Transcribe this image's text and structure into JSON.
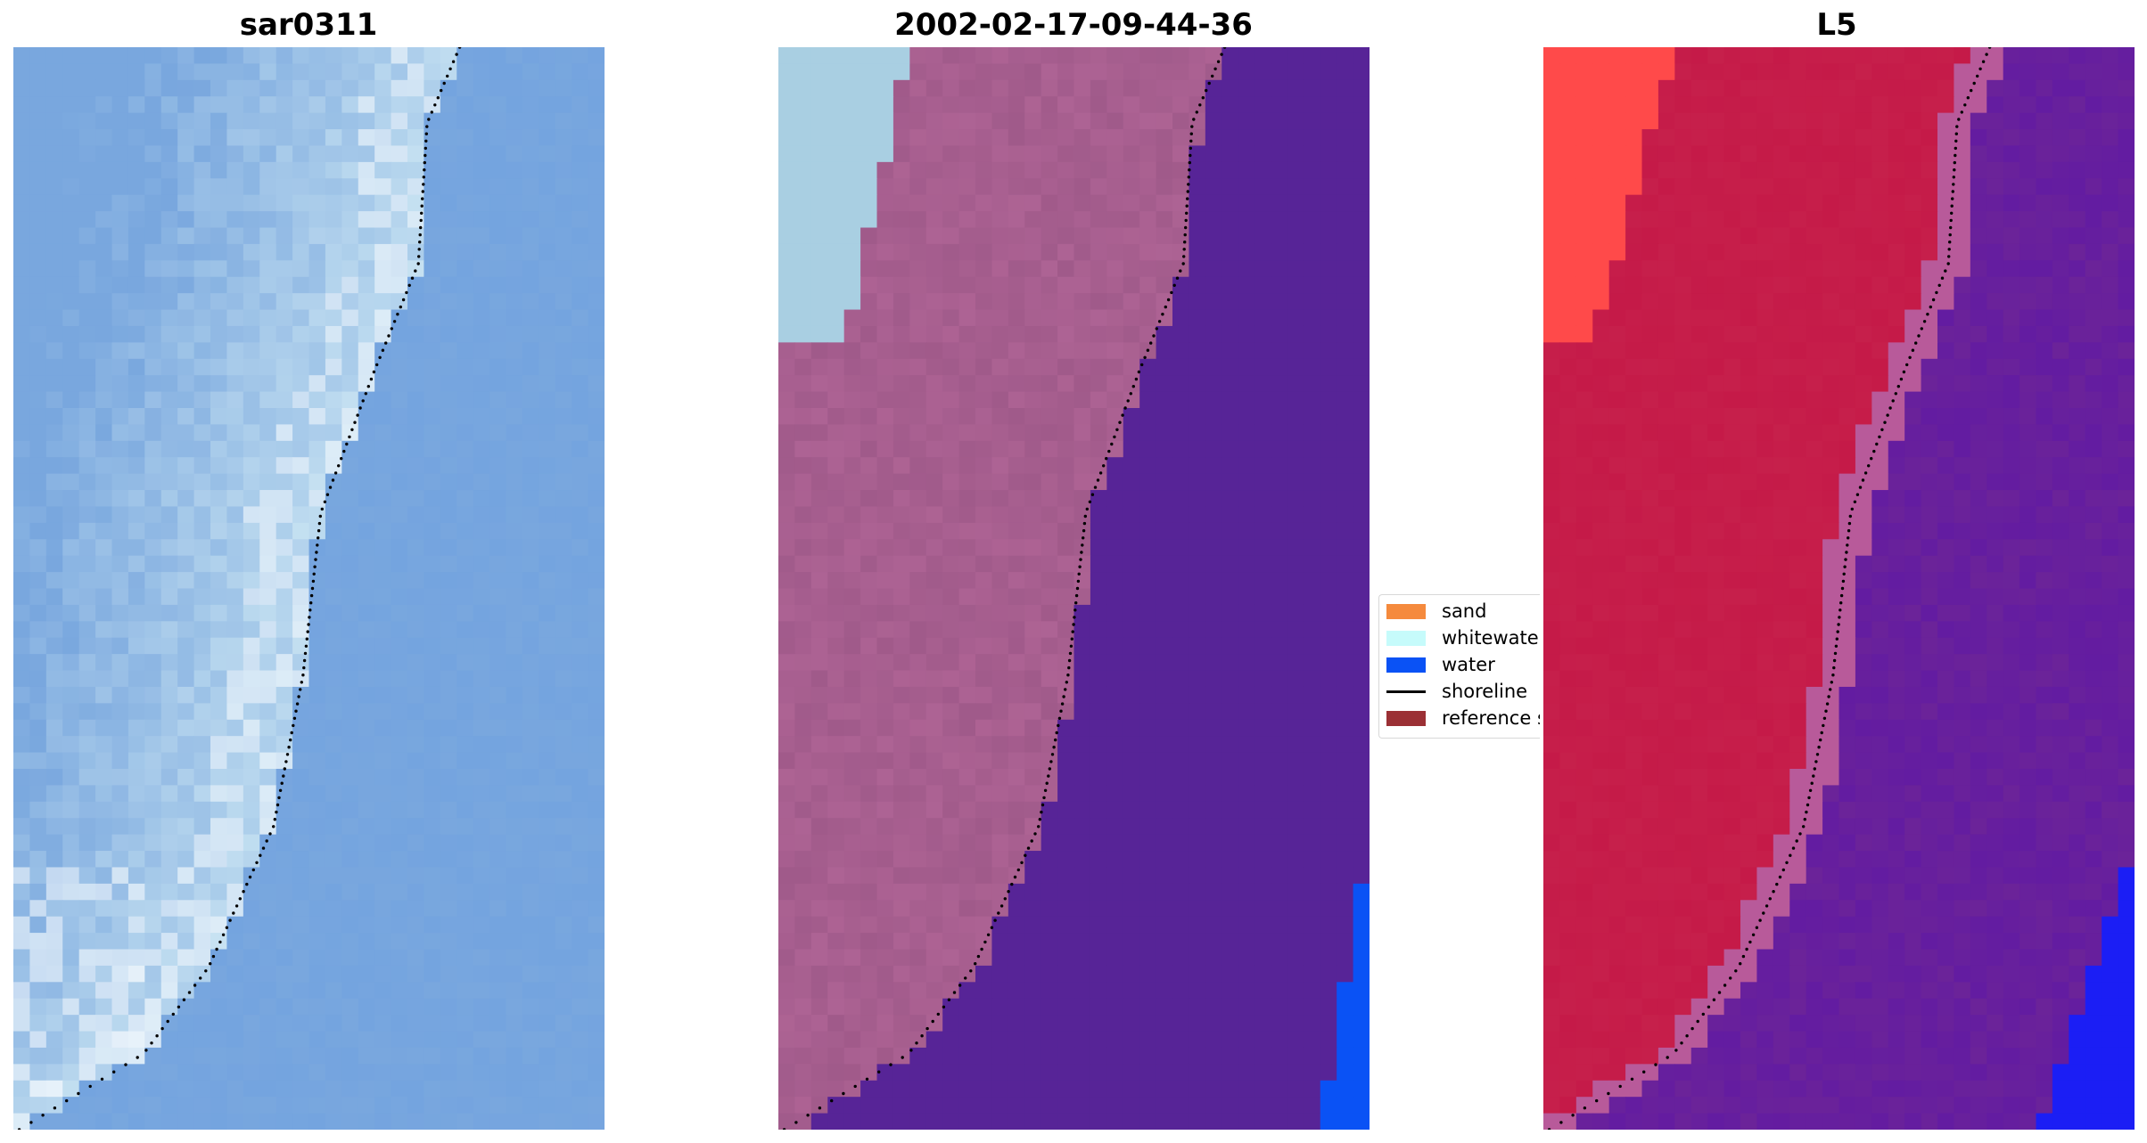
{
  "panels": [
    {
      "title": "sar0311",
      "kind": "rgb"
    },
    {
      "title": "2002-02-17-09-44-36",
      "kind": "classified"
    },
    {
      "title": "L5",
      "kind": "probability"
    }
  ],
  "legend": {
    "items": [
      {
        "label": "sand",
        "color": "#f58a3d",
        "type": "patch"
      },
      {
        "label": "whitewater",
        "color": "#c6fbfb",
        "type": "patch"
      },
      {
        "label": "water",
        "color": "#0a52f5",
        "type": "patch"
      },
      {
        "label": "shoreline",
        "color": "#000000",
        "type": "line"
      },
      {
        "label": "reference shoreline buffer",
        "color": "#9b3035",
        "type": "patch"
      }
    ]
  },
  "colors": {
    "rgb_sea": "#79a7de",
    "rgb_surf": "#c8e3f2",
    "classified_land": "#a05a8a",
    "classified_water": "#572497",
    "classified_whitewater": "#a9cfe2",
    "classified_bluewater": "#0a52f5",
    "prob_land": "#c51a48",
    "prob_water": "#6b2399",
    "prob_sand": "#ff4a4a",
    "prob_bluewater": "#1b1ef5"
  }
}
